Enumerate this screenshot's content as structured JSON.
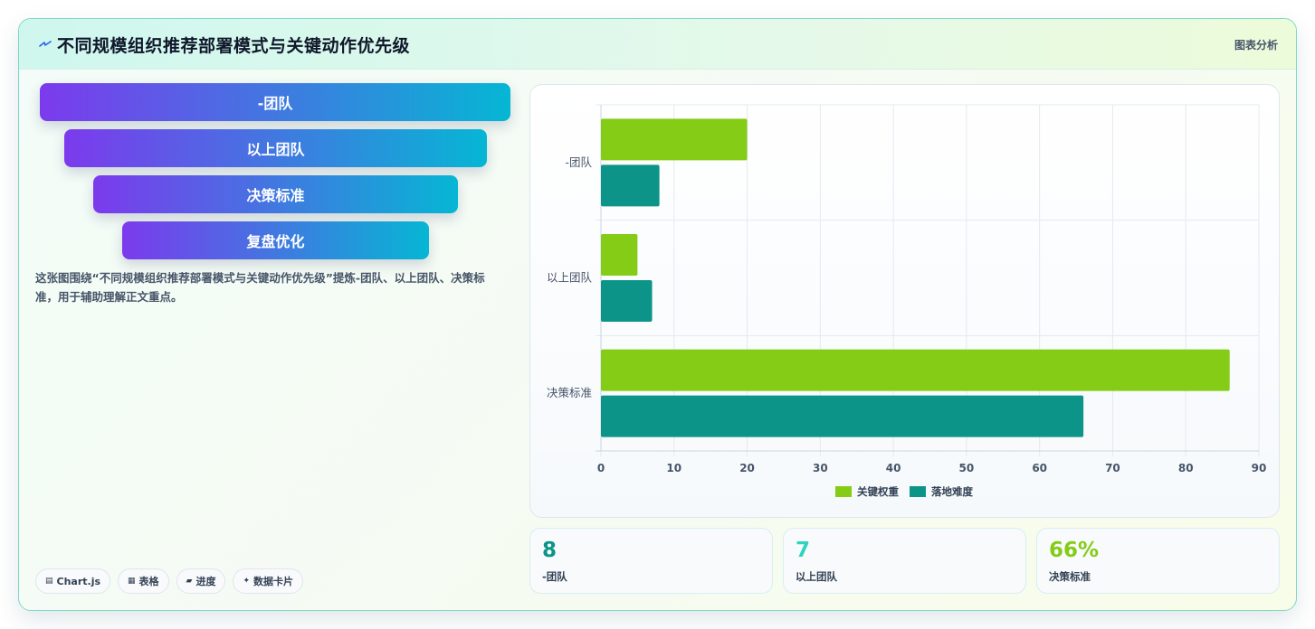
{
  "header": {
    "title": "不同规模组织推荐部署模式与关键动作优先级",
    "tag": "图表分析",
    "title_icon": "lightning-icon"
  },
  "funnel": {
    "items": [
      "-团队",
      "以上团队",
      "决策标准",
      "复盘优化"
    ]
  },
  "description": "这张图围绕“不同规模组织推荐部署模式与关键动作优先级”提炼-团队、以上团队、决策标准，用于辅助理解正文重点。",
  "chips": [
    {
      "icon": "chart-icon",
      "glyph": "▤",
      "label": "Chart.js"
    },
    {
      "icon": "table-icon",
      "glyph": "▦",
      "label": "表格"
    },
    {
      "icon": "progress-icon",
      "glyph": "▰",
      "label": "进度"
    },
    {
      "icon": "sparkle-icon",
      "glyph": "✦",
      "label": "数据卡片"
    }
  ],
  "chart_data": {
    "type": "bar",
    "orientation": "horizontal",
    "categories": [
      "-团队",
      "以上团队",
      "决策标准"
    ],
    "series": [
      {
        "name": "关键权重",
        "color": "#84cc16",
        "values": [
          20,
          5,
          86
        ]
      },
      {
        "name": "落地难度",
        "color": "#0d9488",
        "values": [
          8,
          7,
          66
        ]
      }
    ],
    "xlim": [
      0,
      90
    ],
    "xticks": [
      0,
      10,
      20,
      30,
      40,
      50,
      60,
      70,
      80,
      90
    ],
    "grid": true,
    "legend_position": "bottom"
  },
  "stats": [
    {
      "value": "8",
      "label": "-团队",
      "color": "#0d9488"
    },
    {
      "value": "7",
      "label": "以上团队",
      "color": "#2dd4bf"
    },
    {
      "value": "66%",
      "label": "决策标准",
      "color": "#84cc16"
    }
  ]
}
